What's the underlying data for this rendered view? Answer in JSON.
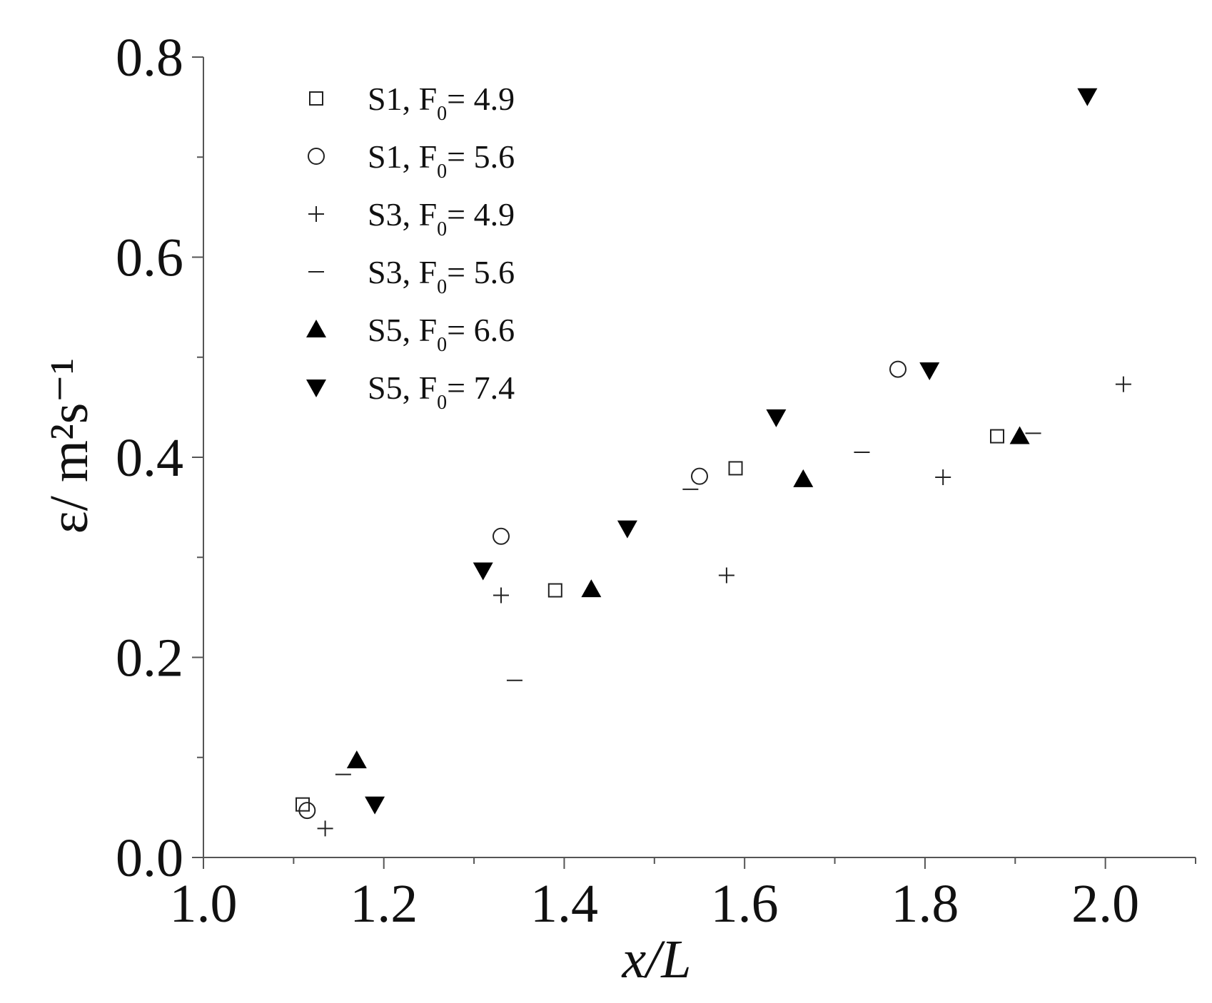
{
  "chart_data": {
    "type": "scatter",
    "xlabel": "x/L",
    "ylabel": "ε/ m²s⁻¹",
    "xlim": [
      1.0,
      2.1
    ],
    "ylim": [
      0.0,
      0.8
    ],
    "x_ticks": [
      "1.0",
      "1.2",
      "1.4",
      "1.6",
      "1.8",
      "2.0"
    ],
    "y_ticks": [
      "0.0",
      "0.2",
      "0.4",
      "0.6",
      "0.8"
    ],
    "legend_position": "top-left",
    "series": [
      {
        "name": "S1, F0= 4.9",
        "label_main": "S1, F",
        "label_sub": "0",
        "label_tail": "= 4.9",
        "marker": "square-open",
        "points": [
          [
            1.11,
            0.053
          ],
          [
            1.39,
            0.267
          ],
          [
            1.59,
            0.389
          ],
          [
            1.88,
            0.421
          ]
        ]
      },
      {
        "name": "S1, F0= 5.6",
        "label_main": "S1, F",
        "label_sub": "0",
        "label_tail": "= 5.6",
        "marker": "circle-open",
        "points": [
          [
            1.115,
            0.047
          ],
          [
            1.33,
            0.321
          ],
          [
            1.55,
            0.381
          ],
          [
            1.77,
            0.488
          ]
        ]
      },
      {
        "name": "S3, F0= 4.9",
        "label_main": "S3, F",
        "label_sub": "0",
        "label_tail": "= 4.9",
        "marker": "plus",
        "points": [
          [
            1.135,
            0.029
          ],
          [
            1.33,
            0.262
          ],
          [
            1.58,
            0.282
          ],
          [
            1.82,
            0.38
          ],
          [
            2.02,
            0.473
          ]
        ]
      },
      {
        "name": "S3, F0= 5.6",
        "label_main": "S3, F",
        "label_sub": "0",
        "label_tail": "= 5.6",
        "marker": "dash",
        "points": [
          [
            1.155,
            0.083
          ],
          [
            1.345,
            0.177
          ],
          [
            1.54,
            0.368
          ],
          [
            1.73,
            0.405
          ],
          [
            1.92,
            0.424
          ]
        ]
      },
      {
        "name": "S5, F0= 6.6",
        "label_main": "S5, F",
        "label_sub": "0",
        "label_tail": "= 6.6",
        "marker": "triangle-up-filled",
        "points": [
          [
            1.17,
            0.097
          ],
          [
            1.43,
            0.268
          ],
          [
            1.665,
            0.378
          ],
          [
            1.905,
            0.421
          ]
        ]
      },
      {
        "name": "S5, F0= 7.4",
        "label_main": "S5, F",
        "label_sub": "0",
        "label_tail": "= 7.4",
        "marker": "triangle-down-filled",
        "points": [
          [
            1.19,
            0.053
          ],
          [
            1.31,
            0.287
          ],
          [
            1.47,
            0.329
          ],
          [
            1.635,
            0.44
          ],
          [
            1.805,
            0.487
          ],
          [
            1.98,
            0.761
          ]
        ]
      }
    ]
  }
}
